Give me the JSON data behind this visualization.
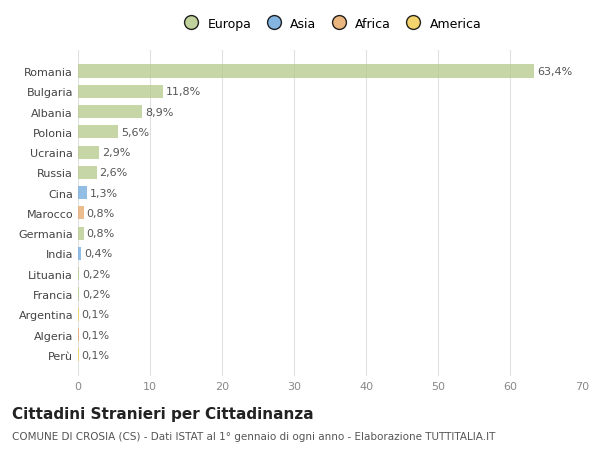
{
  "countries": [
    "Romania",
    "Bulgaria",
    "Albania",
    "Polonia",
    "Ucraina",
    "Russia",
    "Cina",
    "Marocco",
    "Germania",
    "India",
    "Lituania",
    "Francia",
    "Argentina",
    "Algeria",
    "Perù"
  ],
  "values": [
    63.4,
    11.8,
    8.9,
    5.6,
    2.9,
    2.6,
    1.3,
    0.8,
    0.8,
    0.4,
    0.2,
    0.2,
    0.1,
    0.1,
    0.1
  ],
  "labels": [
    "63,4%",
    "11,8%",
    "8,9%",
    "5,6%",
    "2,9%",
    "2,6%",
    "1,3%",
    "0,8%",
    "0,8%",
    "0,4%",
    "0,2%",
    "0,2%",
    "0,1%",
    "0,1%",
    "0,1%"
  ],
  "continents": [
    "Europa",
    "Europa",
    "Europa",
    "Europa",
    "Europa",
    "Europa",
    "Asia",
    "Africa",
    "Europa",
    "Asia",
    "Europa",
    "Europa",
    "America",
    "Africa",
    "America"
  ],
  "continent_colors": {
    "Europa": "#b5c98a",
    "Asia": "#6fa8dc",
    "Africa": "#e6a96a",
    "America": "#f0cc55"
  },
  "xlim": [
    0,
    70
  ],
  "xticks": [
    0,
    10,
    20,
    30,
    40,
    50,
    60,
    70
  ],
  "background_color": "#ffffff",
  "grid_color": "#e0e0e0",
  "title": "Cittadini Stranieri per Cittadinanza",
  "subtitle": "COMUNE DI CROSIA (CS) - Dati ISTAT al 1° gennaio di ogni anno - Elaborazione TUTTITALIA.IT",
  "bar_height": 0.65,
  "label_fontsize": 8,
  "ytick_fontsize": 8,
  "xtick_fontsize": 8,
  "title_fontsize": 11,
  "subtitle_fontsize": 7.5,
  "legend_fontsize": 9,
  "legend_order": [
    "Europa",
    "Asia",
    "Africa",
    "America"
  ]
}
